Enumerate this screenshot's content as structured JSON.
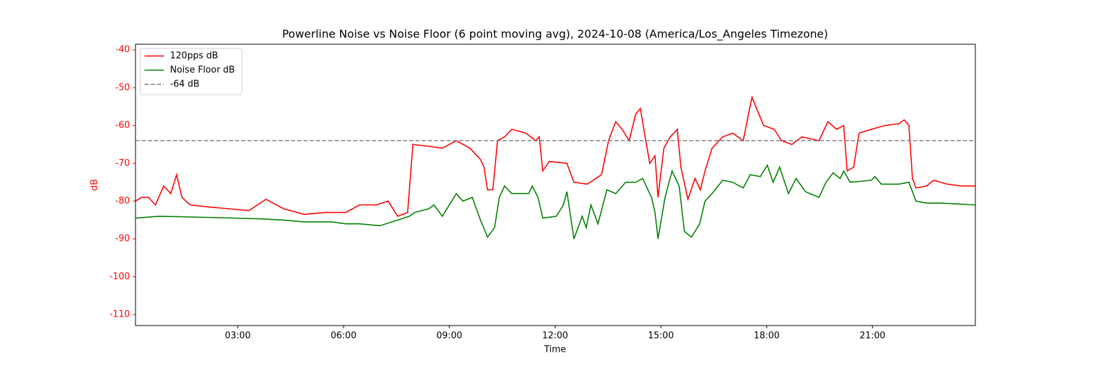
{
  "chart_data": {
    "type": "line",
    "title": "Powerline Noise vs Noise Floor (6 point moving avg), 2024-10-08 (America/Los_Angeles Timezone)",
    "xlabel": "Time",
    "ylabel": "dB",
    "ylabel_color": "red",
    "ytick_color": "red",
    "xlim": [
      "00:06",
      "23:55"
    ],
    "xticks": [
      "03:00",
      "06:00",
      "09:00",
      "12:00",
      "15:00",
      "18:00",
      "21:00"
    ],
    "ylim": [
      -112.9,
      -38.5
    ],
    "yticks": [
      -40,
      -50,
      -60,
      -70,
      -80,
      -90,
      -100,
      -110
    ],
    "legend": "upper left",
    "series": [
      {
        "name": "120pps dB",
        "color": "red",
        "x": [
          "00:06",
          "00:16",
          "00:28",
          "00:40",
          "00:54",
          "01:06",
          "01:16",
          "01:25",
          "01:39",
          "02:08",
          "02:44",
          "03:19",
          "03:48",
          "04:18",
          "04:53",
          "05:28",
          "06:04",
          "06:27",
          "06:56",
          "07:16",
          "07:32",
          "07:49",
          "07:58",
          "08:25",
          "08:48",
          "09:12",
          "09:35",
          "09:53",
          "09:59",
          "10:05",
          "10:14",
          "10:22",
          "10:34",
          "10:46",
          "11:10",
          "11:27",
          "11:33",
          "11:39",
          "11:50",
          "12:20",
          "12:32",
          "12:55",
          "13:19",
          "13:31",
          "13:43",
          "13:54",
          "14:06",
          "14:17",
          "14:25",
          "14:32",
          "14:41",
          "14:50",
          "14:55",
          "15:05",
          "15:16",
          "15:28",
          "15:34",
          "15:46",
          "15:58",
          "16:07",
          "16:15",
          "16:27",
          "16:45",
          "17:02",
          "17:20",
          "17:29",
          "17:35",
          "17:44",
          "17:55",
          "18:13",
          "18:25",
          "18:43",
          "19:00",
          "19:29",
          "19:44",
          "19:59",
          "20:11",
          "20:17",
          "20:28",
          "20:37",
          "20:58",
          "21:21",
          "21:45",
          "21:54",
          "22:02",
          "22:08",
          "22:14",
          "22:32",
          "22:44",
          "23:07",
          "23:31",
          "23:55"
        ],
        "values": [
          -80,
          -79,
          -79,
          -81,
          -76,
          -78,
          -73,
          -79,
          -81,
          -81.5,
          -82,
          -82.5,
          -79.5,
          -82,
          -83.5,
          -83,
          -83,
          -81,
          -81,
          -80,
          -84,
          -83,
          -65,
          -65.5,
          -66,
          -64,
          -66,
          -69,
          -71,
          -77,
          -77,
          -64,
          -63,
          -61,
          -62,
          -64,
          -63,
          -72,
          -69.5,
          -70,
          -75,
          -75.5,
          -73,
          -64,
          -59,
          -61,
          -64,
          -57,
          -55.5,
          -62,
          -70,
          -68,
          -79,
          -66,
          -63,
          -61,
          -71,
          -79.5,
          -74,
          -77,
          -72,
          -66,
          -63,
          -62,
          -64,
          -57,
          -52.5,
          -56,
          -60,
          -61,
          -64,
          -65,
          -63,
          -64,
          -59,
          -61,
          -60,
          -72,
          -71,
          -62,
          -61,
          -60,
          -59.5,
          -58.5,
          -60,
          -74,
          -76.5,
          -76,
          -74.5,
          -75.5,
          -76,
          -76
        ]
      },
      {
        "name": "Noise Floor dB",
        "color": "green",
        "x": [
          "00:06",
          "00:46",
          "02:08",
          "03:42",
          "04:18",
          "04:53",
          "05:40",
          "06:04",
          "06:27",
          "07:02",
          "07:32",
          "07:52",
          "08:01",
          "08:25",
          "08:34",
          "08:48",
          "09:12",
          "09:23",
          "09:39",
          "09:53",
          "10:05",
          "10:17",
          "10:25",
          "10:34",
          "10:46",
          "11:15",
          "11:21",
          "11:31",
          "11:39",
          "12:02",
          "12:14",
          "12:20",
          "12:32",
          "12:46",
          "12:53",
          "13:01",
          "13:13",
          "13:28",
          "13:43",
          "14:00",
          "14:17",
          "14:29",
          "14:44",
          "14:50",
          "14:55",
          "15:07",
          "15:19",
          "15:31",
          "15:40",
          "15:52",
          "16:06",
          "16:15",
          "16:27",
          "16:45",
          "17:02",
          "17:20",
          "17:32",
          "17:49",
          "18:01",
          "18:11",
          "18:22",
          "18:37",
          "18:50",
          "19:06",
          "19:29",
          "19:41",
          "19:53",
          "20:05",
          "20:11",
          "20:22",
          "20:58",
          "21:04",
          "21:15",
          "21:45",
          "22:02",
          "22:14",
          "22:32",
          "22:55",
          "23:55"
        ],
        "values": [
          -84.5,
          -84,
          -84.3,
          -84.7,
          -85,
          -85.5,
          -85.5,
          -86,
          -86,
          -86.5,
          -85,
          -84,
          -83,
          -82,
          -81,
          -84,
          -78,
          -80,
          -79,
          -85,
          -89.5,
          -87,
          -79,
          -76,
          -78,
          -78,
          -76,
          -79,
          -84.5,
          -84,
          -81,
          -77.5,
          -90,
          -84,
          -87,
          -81,
          -86,
          -77,
          -78,
          -75,
          -75,
          -74,
          -79,
          -83,
          -90,
          -79,
          -72,
          -76,
          -88,
          -89.5,
          -86,
          -80,
          -78,
          -74.5,
          -75,
          -76.5,
          -73,
          -73.5,
          -70.5,
          -75,
          -71,
          -78,
          -74,
          -77.5,
          -79,
          -75,
          -72.5,
          -74,
          -72,
          -75,
          -74.5,
          -73.5,
          -75.5,
          -75.5,
          -75,
          -80,
          -80.5,
          -80.5,
          -81
        ]
      }
    ],
    "reference_line": {
      "name": "-64 dB",
      "value": -64,
      "color": "gray",
      "dashed": true
    }
  }
}
